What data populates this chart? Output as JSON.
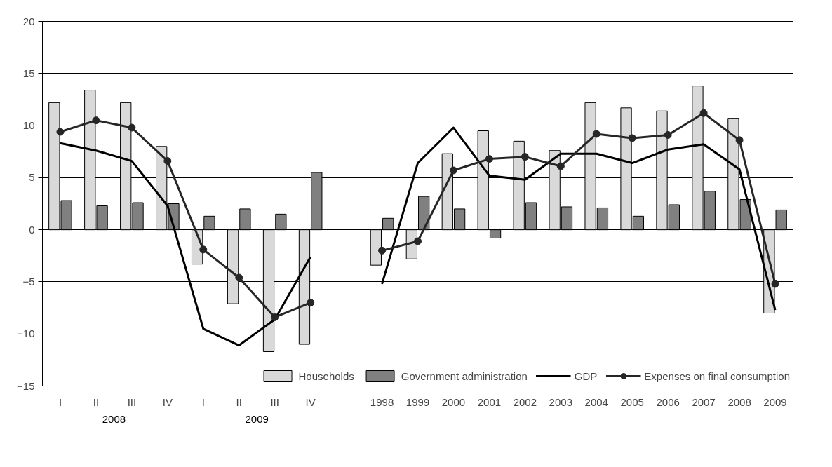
{
  "chart_data": {
    "type": "bar",
    "categories": [
      "I",
      "II",
      "III",
      "IV",
      "I",
      "II",
      "III",
      "IV",
      null,
      "1998",
      "1999",
      "2000",
      "2001",
      "2002",
      "2003",
      "2004",
      "2005",
      "2006",
      "2007",
      "2008",
      "2009"
    ],
    "series": [
      {
        "name": "Households",
        "color": "#d9d9d9",
        "values": [
          12.2,
          13.4,
          12.2,
          8.0,
          -3.3,
          -7.1,
          -11.7,
          -11.0,
          null,
          -3.4,
          -2.8,
          7.3,
          9.5,
          8.5,
          7.6,
          12.2,
          11.7,
          11.4,
          13.8,
          10.7,
          -8.0
        ]
      },
      {
        "name": "Government administration",
        "color": "#808080",
        "values": [
          2.8,
          2.3,
          2.6,
          2.5,
          1.3,
          2.0,
          1.5,
          5.5,
          null,
          1.1,
          3.2,
          2.0,
          -0.8,
          2.6,
          2.2,
          2.1,
          1.3,
          2.4,
          3.7,
          2.9,
          1.9
        ]
      },
      {
        "name": "GDP",
        "type": "line",
        "color": "#000000",
        "marker": "none",
        "values": [
          8.3,
          7.6,
          6.6,
          2.3,
          -9.5,
          -11.1,
          -8.6,
          -2.6,
          null,
          -5.2,
          6.4,
          9.8,
          5.2,
          4.8,
          7.3,
          7.3,
          6.4,
          7.7,
          8.2,
          5.8,
          -7.7
        ]
      },
      {
        "name": "Expenses on final consumption",
        "type": "line",
        "color": "#262626",
        "marker": "circle",
        "values": [
          9.4,
          10.5,
          9.8,
          6.6,
          -1.9,
          -4.6,
          -8.4,
          -7.0,
          null,
          -2.0,
          -1.1,
          5.7,
          6.8,
          7.0,
          6.1,
          9.2,
          8.8,
          9.1,
          11.2,
          8.6,
          -5.2
        ]
      }
    ],
    "annotations": [
      "2008",
      "2009"
    ],
    "ylim": [
      -15,
      20
    ],
    "yticks": [
      -15,
      -10,
      -5,
      0,
      5,
      10,
      15,
      20
    ],
    "grid": "y",
    "legend": "bottom",
    "line_style": "solid"
  }
}
